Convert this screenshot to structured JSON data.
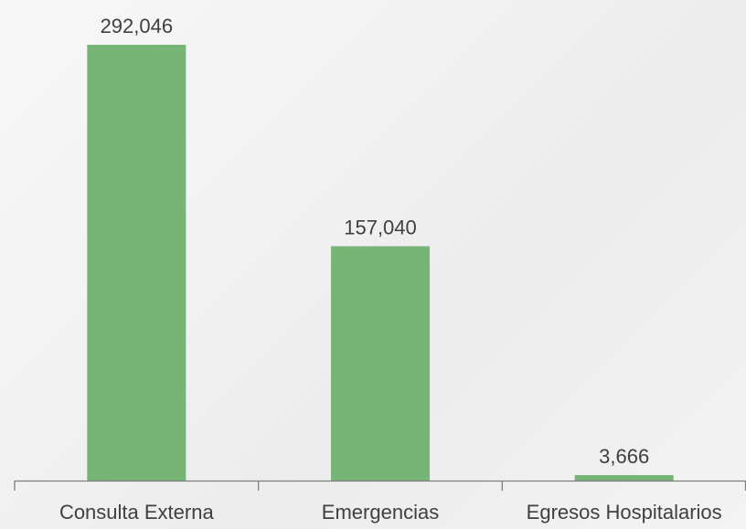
{
  "chart_data": {
    "type": "bar",
    "categories": [
      "Consulta Externa",
      "Emergencias",
      "Egresos Hospitalarios"
    ],
    "values": [
      292046,
      157040,
      3666
    ],
    "data_labels": [
      "292,046",
      "157,040",
      "3,666"
    ],
    "title": "",
    "xlabel": "",
    "ylabel": "",
    "ylim": [
      0,
      292046
    ],
    "grid": false,
    "legend": "none",
    "colors": {
      "bar": "#77b576",
      "axis": "#7f7f7f",
      "text": "#404040"
    }
  }
}
